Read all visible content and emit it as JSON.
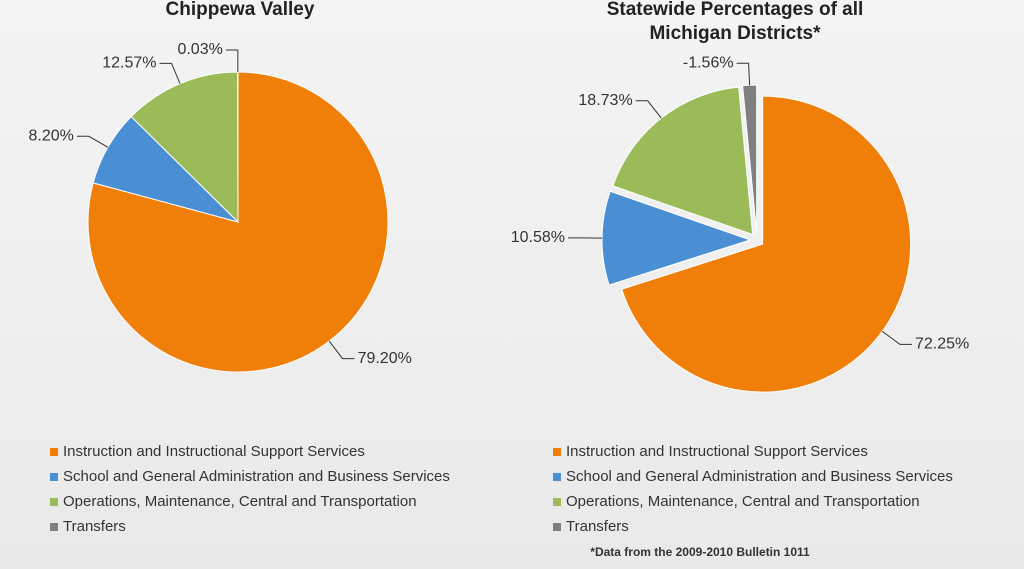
{
  "chart_data": [
    {
      "type": "pie",
      "title": "Chippewa Valley",
      "categories": [
        "Instruction and Instructional Support Services",
        "School and General Administration and Business Services",
        "Operations, Maintenance, Central and Transportation",
        "Transfers"
      ],
      "values": [
        79.2,
        8.2,
        12.57,
        0.03
      ],
      "value_labels": [
        "79.20%",
        "8.20%",
        "12.57%",
        "0.03%"
      ],
      "colors": [
        "#f07f09",
        "#4a8fd4",
        "#9bbb59",
        "#7f7f7f"
      ]
    },
    {
      "type": "pie",
      "title": "Statewide Percentages of all Michigan Districts*",
      "categories": [
        "Instruction and Instructional Support Services",
        "School and General Administration and Business Services",
        "Operations, Maintenance, Central and Transportation",
        "Transfers"
      ],
      "values": [
        72.25,
        10.58,
        18.73,
        -1.56
      ],
      "value_labels": [
        "72.25%",
        "10.58%",
        "18.73%",
        "-1.56%"
      ],
      "colors": [
        "#f07f09",
        "#4a8fd4",
        "#9bbb59",
        "#7f7f7f"
      ],
      "note": "*Data from the 2009-2010 Bulletin 1011"
    }
  ]
}
